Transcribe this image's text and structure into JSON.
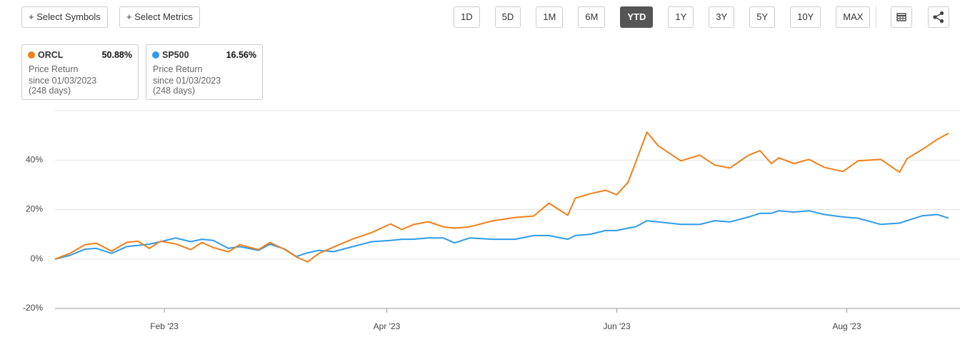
{
  "toolbar": {
    "buttons": [
      "+ Select Symbols",
      "+ Select Metrics"
    ],
    "ranges": [
      "1D",
      "5D",
      "1M",
      "6M",
      "YTD",
      "1Y",
      "3Y",
      "5Y",
      "10Y",
      "MAX"
    ],
    "active_range": "YTD"
  },
  "chart_data": {
    "type": "line",
    "x": [
      0,
      4,
      8,
      11,
      15,
      19,
      22,
      25,
      28,
      32,
      36,
      39,
      42,
      46,
      49,
      54,
      57,
      61,
      64,
      67,
      70,
      74,
      79,
      84,
      89,
      92,
      95,
      99,
      103,
      106,
      110,
      116,
      122,
      127,
      131,
      136,
      138,
      142,
      146,
      149,
      152,
      154,
      157,
      160,
      166,
      171,
      175,
      179,
      184,
      187,
      190,
      192,
      196,
      200,
      204,
      209,
      213,
      219,
      224,
      226,
      230,
      234,
      237
    ],
    "xlim": [
      0,
      237
    ],
    "xticks": [
      {
        "value": 29,
        "label": "Feb '23"
      },
      {
        "value": 88,
        "label": "Apr '23"
      },
      {
        "value": 149,
        "label": "Jun '23"
      },
      {
        "value": 210,
        "label": "Aug '23"
      }
    ],
    "ylim": [
      -20,
      60
    ],
    "yticks": [
      {
        "value": -20,
        "label": "-20%"
      },
      {
        "value": 0,
        "label": "0%"
      },
      {
        "value": 20,
        "label": "20%"
      },
      {
        "value": 40,
        "label": "40%"
      }
    ],
    "grid": true,
    "series": [
      {
        "name": "ORCL",
        "color": "#f07f1a",
        "values": [
          0,
          2.3,
          5.8,
          6.4,
          3.2,
          6.7,
          7.2,
          4.3,
          7.2,
          6.1,
          3.8,
          6.7,
          4.6,
          2.9,
          5.8,
          3.8,
          6.7,
          3.8,
          0.9,
          -1.2,
          2.3,
          4.9,
          8.1,
          10.7,
          14.2,
          11.9,
          13.9,
          15.1,
          13,
          12.5,
          13,
          15.4,
          16.8,
          17.4,
          22.6,
          17.7,
          24.6,
          26.4,
          27.8,
          26,
          31,
          39.1,
          51.3,
          45.8,
          39.7,
          42,
          38,
          36.8,
          42,
          43.8,
          38.6,
          40.9,
          38.6,
          40.3,
          37.1,
          35.4,
          39.7,
          40.3,
          35.1,
          40.6,
          44.3,
          48.4,
          50.88
        ]
      },
      {
        "name": "SP500",
        "color": "#2e9be8",
        "values": [
          0,
          1.5,
          4,
          4.3,
          2.3,
          5,
          5.5,
          6,
          7,
          8.5,
          7,
          8,
          7.5,
          4.3,
          5,
          3.5,
          6,
          4,
          1,
          2.5,
          3.5,
          3,
          5,
          7,
          7.5,
          8,
          8,
          8.5,
          8.5,
          6.5,
          8.5,
          8,
          8,
          9.5,
          9.5,
          8,
          9.5,
          10,
          11.5,
          11.5,
          12.5,
          13,
          15.5,
          15,
          14,
          14,
          15.5,
          15,
          17,
          18.5,
          18.5,
          19.5,
          19,
          19.5,
          18,
          17,
          16.5,
          14,
          14.5,
          15.5,
          17.5,
          18,
          16.56
        ]
      }
    ],
    "legend": [
      {
        "return": "50.88%",
        "metric": "Price Return",
        "since": "since 01/03/2023",
        "days": "(248 days)"
      },
      {
        "return": "16.56%",
        "metric": "Price Return",
        "since": "since 01/03/2023",
        "days": "(248 days)"
      }
    ]
  }
}
